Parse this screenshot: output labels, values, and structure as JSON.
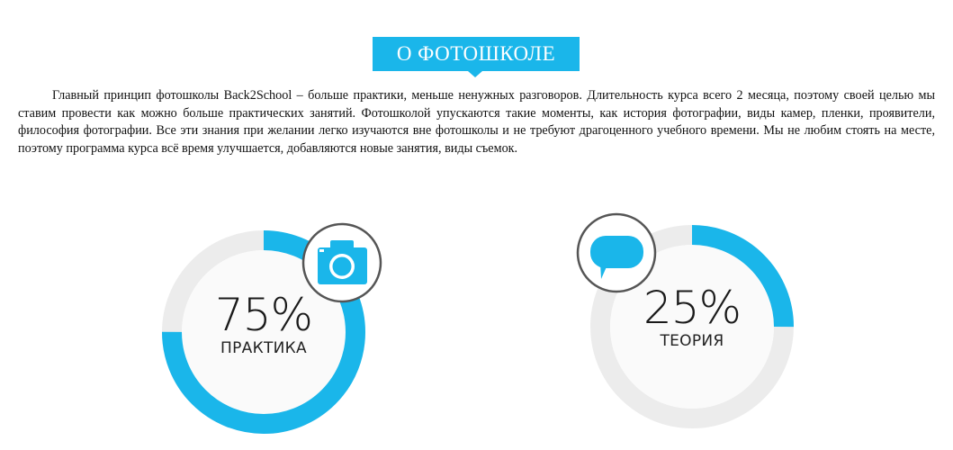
{
  "header": {
    "title": "О ФОТОШКОЛЕ"
  },
  "intro": {
    "text": "Главный принцип фотошколы Back2School – больше практики, меньше ненужных разговоров. Длительность курса всего 2 месяца, поэтому своей целью мы ставим провести как можно больше практических занятий. Фотошколой упускаются такие моменты, как история фотографии, виды камер, пленки, проявители, философия фотографии. Все эти знания при желании легко изучаются вне фотошколы и не требуют драгоценного учебного времени. Мы не любим стоять на месте, поэтому программа курса всё время улучшается, добавляются новые занятия, виды съемок."
  },
  "stats": [
    {
      "value_text": "75%",
      "label": "ПРАКТИКА",
      "fraction": 0.75,
      "icon": "camera-icon"
    },
    {
      "value_text": "25%",
      "label": "ТЕОРИЯ",
      "fraction": 0.25,
      "icon": "speech-bubble-icon"
    }
  ],
  "colors": {
    "accent": "#1ab6ea",
    "track": "#ececec",
    "text": "#111111",
    "icon_border": "#555555"
  }
}
